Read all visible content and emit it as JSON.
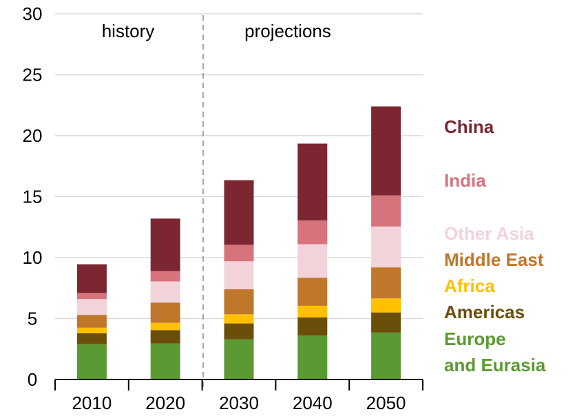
{
  "chart_data": {
    "type": "bar",
    "stacked": true,
    "categories": [
      "2010",
      "2020",
      "2030",
      "2040",
      "2050"
    ],
    "ylim": [
      0,
      30
    ],
    "yticks": [
      0,
      5,
      10,
      15,
      20,
      25,
      30
    ],
    "grid": true,
    "period_labels": [
      "history",
      "projections"
    ],
    "series": [
      {
        "name": "Europe and Eurasia",
        "legend_lines": [
          "Europe",
          "and Eurasia"
        ],
        "color": "#5b9a33",
        "values": [
          2.9,
          2.95,
          3.3,
          3.6,
          3.85
        ]
      },
      {
        "name": "Americas",
        "legend_lines": [
          "Americas"
        ],
        "color": "#6b4e0a",
        "values": [
          0.9,
          1.1,
          1.3,
          1.5,
          1.65
        ]
      },
      {
        "name": "Africa",
        "legend_lines": [
          "Africa"
        ],
        "color": "#ffc000",
        "values": [
          0.45,
          0.6,
          0.75,
          0.95,
          1.15
        ]
      },
      {
        "name": "Middle East",
        "legend_lines": [
          "Middle East"
        ],
        "color": "#c0762b",
        "values": [
          1.05,
          1.65,
          2.05,
          2.3,
          2.55
        ]
      },
      {
        "name": "Other Asia",
        "legend_lines": [
          "Other Asia"
        ],
        "color": "#f2d3d9",
        "values": [
          1.3,
          1.75,
          2.3,
          2.75,
          3.35
        ]
      },
      {
        "name": "India",
        "legend_lines": [
          "India"
        ],
        "color": "#d6737d",
        "values": [
          0.5,
          0.85,
          1.35,
          1.95,
          2.55
        ]
      },
      {
        "name": "China",
        "legend_lines": [
          "China"
        ],
        "color": "#7b2631",
        "values": [
          2.35,
          4.3,
          5.3,
          6.3,
          7.3
        ]
      }
    ]
  }
}
